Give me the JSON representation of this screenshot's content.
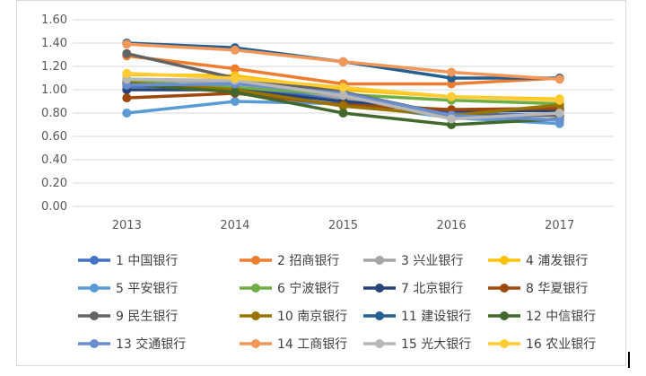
{
  "chart_data": {
    "type": "line",
    "title": "",
    "xlabel": "",
    "ylabel": "",
    "x": [
      "2013",
      "2014",
      "2015",
      "2016",
      "2017"
    ],
    "ylim": [
      0,
      1.6
    ],
    "y_ticks": [
      "0.00",
      "0.20",
      "0.40",
      "0.60",
      "0.80",
      "1.00",
      "1.20",
      "1.40",
      "1.60"
    ],
    "grid": "horizontal",
    "legend_position": "bottom",
    "series": [
      {
        "name": "1 中国银行",
        "color": "#4472C4",
        "values": [
          1.03,
          1.02,
          0.93,
          0.8,
          0.78
        ]
      },
      {
        "name": "2 招商银行",
        "color": "#ED7D31",
        "values": [
          1.29,
          1.18,
          1.05,
          1.05,
          1.1
        ]
      },
      {
        "name": "3 兴业银行",
        "color": "#A5A5A5",
        "values": [
          1.08,
          1.07,
          0.93,
          0.78,
          0.78
        ]
      },
      {
        "name": "4 浦发银行",
        "color": "#FFC000",
        "values": [
          1.13,
          1.12,
          1.0,
          0.94,
          0.92
        ]
      },
      {
        "name": "5 平安银行",
        "color": "#5B9BD5",
        "values": [
          0.8,
          0.9,
          0.88,
          0.76,
          0.71
        ]
      },
      {
        "name": "6 宁波银行",
        "color": "#70AD47",
        "values": [
          1.07,
          1.02,
          0.96,
          0.91,
          0.88
        ]
      },
      {
        "name": "7 北京银行",
        "color": "#264478",
        "values": [
          1.0,
          1.0,
          0.9,
          0.82,
          0.82
        ]
      },
      {
        "name": "8 华夏银行",
        "color": "#9E480E",
        "values": [
          0.93,
          0.97,
          0.87,
          0.83,
          0.84
        ]
      },
      {
        "name": "9 民生银行",
        "color": "#636363",
        "values": [
          1.31,
          1.1,
          0.98,
          0.78,
          0.78
        ]
      },
      {
        "name": "10 南京银行",
        "color": "#997300",
        "values": [
          1.06,
          1.0,
          0.86,
          0.78,
          0.87
        ]
      },
      {
        "name": "11 建设银行",
        "color": "#255E91",
        "values": [
          1.4,
          1.36,
          1.24,
          1.1,
          1.1
        ]
      },
      {
        "name": "12 中信银行",
        "color": "#43682B",
        "values": [
          1.05,
          0.98,
          0.8,
          0.7,
          0.75
        ]
      },
      {
        "name": "13 交通银行",
        "color": "#698ED0",
        "values": [
          1.04,
          1.05,
          0.97,
          0.78,
          0.74
        ]
      },
      {
        "name": "14 工商银行",
        "color": "#F1975A",
        "values": [
          1.39,
          1.34,
          1.24,
          1.15,
          1.09
        ]
      },
      {
        "name": "15 光大银行",
        "color": "#B7B7B7",
        "values": [
          1.09,
          1.08,
          0.95,
          0.75,
          0.8
        ]
      },
      {
        "name": "16 农业银行",
        "color": "#FFCD33",
        "values": [
          1.14,
          1.1,
          1.02,
          0.94,
          0.91
        ]
      }
    ]
  }
}
